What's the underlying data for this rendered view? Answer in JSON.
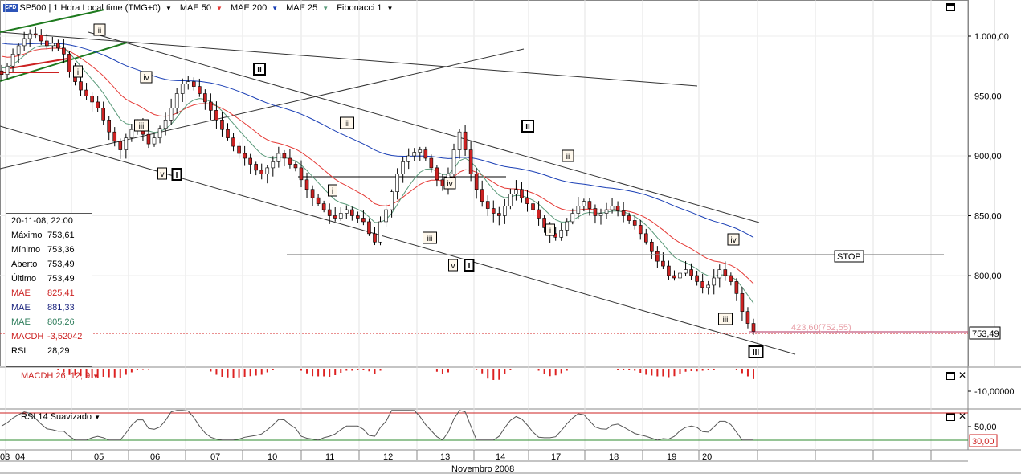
{
  "toolbar": {
    "badge": "CFD",
    "symbol_label": "SP500 | 1 Hora Local time (TMG+0)",
    "ind_mae50": "MAE 50",
    "ind_mae200": "MAE 200",
    "ind_mae25": "MAE 25",
    "ind_fib": "Fibonacci 1",
    "arrow": "▼"
  },
  "info_box": {
    "date": "20-11-08, 22:00",
    "rows": [
      {
        "label": "Máximo",
        "value": "753,61",
        "color": "#000000"
      },
      {
        "label": "Mínimo",
        "value": "753,36",
        "color": "#000000"
      },
      {
        "label": "Aberto",
        "value": "753,49",
        "color": "#000000"
      },
      {
        "label": "Último",
        "value": "753,49",
        "color": "#000000"
      },
      {
        "label": "MAE",
        "value": "825,41",
        "color": "#cc2222"
      },
      {
        "label": "MAE",
        "value": "881,33",
        "color": "#1a237e"
      },
      {
        "label": "MAE",
        "value": "805,26",
        "color": "#2e7d5b"
      },
      {
        "label": "MACDH",
        "value": "-3,52042",
        "color": "#cc2222"
      },
      {
        "label": "RSI",
        "value": "28,29",
        "color": "#000000"
      }
    ]
  },
  "panels": {
    "macd_title": "MACDH 26; 12; 9",
    "rsi_title": "RSI 14 Suavizado",
    "macd_axis_label": "-10,00000",
    "rsi_axis_label": "50,00",
    "rsi_level_label": "30,00"
  },
  "annotations": {
    "stop_label": "STOP",
    "fib_label": "423,60(752,55)",
    "last_price_label": "753,49",
    "waves": {
      "w1": "i",
      "w2": "ii",
      "w3": "iii",
      "w4": "iv",
      "w5": "v",
      "major1": "I",
      "major2": "II",
      "major3": "III"
    }
  },
  "x_axis": {
    "day_labels": [
      "03",
      "04",
      "05",
      "06",
      "07",
      "10",
      "11",
      "12",
      "13",
      "14",
      "17",
      "18",
      "19",
      "20"
    ],
    "month_label": "Novembro 2008"
  },
  "colors": {
    "mae50": "#e53935",
    "mae200": "#1a3fb5",
    "mae25": "#5a9a7a",
    "candle_up": "#ffffff",
    "candle_down": "#cc2222",
    "macd_bars": "#dd2222",
    "rsi_line": "#555555",
    "rsi_level": "#2e8b2e",
    "trend_green": "#1e7a1e",
    "stop_line": "#888888",
    "fib_line": "#b03060"
  },
  "chart_data": {
    "type": "candlestick",
    "title": "SP500 | 1 Hora Local time (TMG+0)",
    "ylim": [
      735,
      1030
    ],
    "y_ticks": [
      1000,
      950,
      900,
      850,
      800
    ],
    "y_tick_labels": [
      "1.000,00",
      "950,00",
      "900,00",
      "850,00",
      "800,00"
    ],
    "x_categories": [
      "03",
      "04",
      "05",
      "06",
      "07",
      "10",
      "11",
      "12",
      "13",
      "14",
      "17",
      "18",
      "19",
      "20"
    ],
    "close_series": [
      968,
      975,
      985,
      992,
      998,
      1002,
      1001,
      996,
      992,
      994,
      990,
      985,
      970,
      962,
      955,
      950,
      945,
      940,
      930,
      920,
      912,
      905,
      915,
      922,
      925,
      918,
      910,
      915,
      923,
      930,
      940,
      952,
      960,
      962,
      958,
      952,
      945,
      938,
      930,
      922,
      915,
      908,
      902,
      898,
      893,
      888,
      885,
      890,
      895,
      902,
      898,
      893,
      890,
      880,
      872,
      865,
      860,
      855,
      850,
      848,
      852,
      855,
      850,
      848,
      845,
      835,
      828,
      845,
      855,
      870,
      885,
      895,
      900,
      903,
      905,
      898,
      890,
      880,
      875,
      885,
      905,
      920,
      905,
      885,
      872,
      862,
      856,
      852,
      850,
      858,
      868,
      872,
      865,
      860,
      855,
      848,
      840,
      835,
      832,
      838,
      845,
      852,
      858,
      862,
      856,
      850,
      852,
      855,
      858,
      854,
      850,
      846,
      842,
      835,
      828,
      820,
      812,
      808,
      800,
      798,
      802,
      805,
      800,
      795,
      790,
      792,
      798,
      805,
      800,
      795,
      785,
      770,
      760,
      753.49
    ],
    "last": {
      "date": "20-11-08, 22:00",
      "high": 753.61,
      "low": 753.36,
      "open": 753.49,
      "close": 753.49
    },
    "indicators": {
      "MAE 50": 825.41,
      "MAE 200": 881.33,
      "MAE 25": 805.26,
      "MACDH 26; 12; 9": -3.52042,
      "RSI 14 Suavizado": 28.29
    },
    "levels": {
      "stop": 817.5,
      "fibonacci": 752.55,
      "rsi_level": 30
    }
  }
}
